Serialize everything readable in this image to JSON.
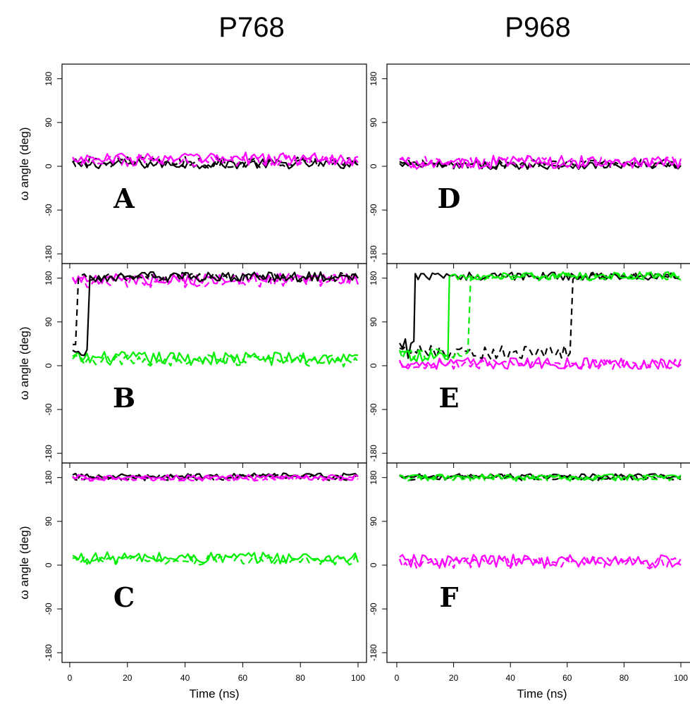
{
  "colors": {
    "black": "#000000",
    "magenta": "#ff00ff",
    "green": "#00ee00"
  },
  "columns": [
    {
      "title": "P768"
    },
    {
      "title": "P968"
    }
  ],
  "chart_data": {
    "type": "line",
    "figure_columns": [
      "P768",
      "P968"
    ],
    "xlabel": "Time (ns)",
    "ylabel": "ω angle (deg)",
    "xlim": [
      0,
      100
    ],
    "ylim": [
      -200,
      210
    ],
    "x_ticks": [
      "0",
      "20",
      "40",
      "60",
      "80",
      "100"
    ],
    "y_ticks": [
      "-180",
      "-90",
      "0",
      "90",
      "180"
    ],
    "line_styles": [
      "solid",
      "dashed"
    ],
    "panels": [
      {
        "label": "A",
        "column": "P768",
        "series": [
          {
            "color": "black",
            "style": "solid",
            "segments": [
              {
                "from": 1,
                "to": 100,
                "level": 5,
                "noise": 10
              }
            ]
          },
          {
            "color": "black",
            "style": "dashed",
            "segments": [
              {
                "from": 1,
                "to": 100,
                "level": 8,
                "noise": 12
              }
            ]
          },
          {
            "color": "magenta",
            "style": "solid",
            "segments": [
              {
                "from": 1,
                "to": 100,
                "level": 15,
                "noise": 14
              }
            ]
          },
          {
            "color": "magenta",
            "style": "dashed",
            "segments": [
              {
                "from": 1,
                "to": 100,
                "level": 12,
                "noise": 12
              }
            ]
          }
        ]
      },
      {
        "label": "B",
        "column": "P768",
        "series": [
          {
            "color": "green",
            "style": "solid",
            "segments": [
              {
                "from": 1,
                "to": 100,
                "level": 15,
                "noise": 14
              }
            ]
          },
          {
            "color": "green",
            "style": "dashed",
            "segments": [
              {
                "from": 1,
                "to": 100,
                "level": 10,
                "noise": 12
              }
            ]
          },
          {
            "color": "magenta",
            "style": "solid",
            "segments": [
              {
                "from": 1,
                "to": 100,
                "level": 178,
                "noise": 12
              }
            ]
          },
          {
            "color": "magenta",
            "style": "dashed",
            "segments": [
              {
                "from": 1,
                "to": 100,
                "level": 175,
                "noise": 14
              }
            ]
          },
          {
            "color": "black",
            "style": "solid",
            "segments": [
              {
                "from": 1,
                "to": 6.5,
                "level": 28,
                "noise": 10
              },
              {
                "from": 7,
                "to": 100,
                "level": 183,
                "noise": 10
              }
            ]
          },
          {
            "color": "black",
            "style": "dashed",
            "segments": [
              {
                "from": 1,
                "to": 2.5,
                "level": 40,
                "noise": 10
              },
              {
                "from": 3,
                "to": 100,
                "level": 182,
                "noise": 10
              }
            ]
          }
        ]
      },
      {
        "label": "C",
        "column": "P768",
        "series": [
          {
            "color": "green",
            "style": "solid",
            "segments": [
              {
                "from": 1,
                "to": 100,
                "level": 15,
                "noise": 12
              }
            ]
          },
          {
            "color": "green",
            "style": "dashed",
            "segments": [
              {
                "from": 1,
                "to": 100,
                "level": 10,
                "noise": 10
              }
            ]
          },
          {
            "color": "black",
            "style": "solid",
            "segments": [
              {
                "from": 1,
                "to": 100,
                "level": 183,
                "noise": 6
              }
            ]
          },
          {
            "color": "black",
            "style": "dashed",
            "segments": [
              {
                "from": 1,
                "to": 100,
                "level": 180,
                "noise": 6
              }
            ]
          },
          {
            "color": "magenta",
            "style": "solid",
            "segments": [
              {
                "from": 1,
                "to": 100,
                "level": 180,
                "noise": 6
              }
            ]
          },
          {
            "color": "magenta",
            "style": "dashed",
            "segments": [
              {
                "from": 1,
                "to": 100,
                "level": 178,
                "noise": 5
              }
            ]
          }
        ]
      },
      {
        "label": "D",
        "column": "P968",
        "series": [
          {
            "color": "black",
            "style": "solid",
            "segments": [
              {
                "from": 1,
                "to": 100,
                "level": 2,
                "noise": 8
              }
            ]
          },
          {
            "color": "black",
            "style": "dashed",
            "segments": [
              {
                "from": 1,
                "to": 100,
                "level": 5,
                "noise": 10
              }
            ]
          },
          {
            "color": "magenta",
            "style": "solid",
            "segments": [
              {
                "from": 1,
                "to": 100,
                "level": 8,
                "noise": 14
              }
            ]
          },
          {
            "color": "magenta",
            "style": "dashed",
            "segments": [
              {
                "from": 1,
                "to": 100,
                "level": 8,
                "noise": 12
              }
            ]
          }
        ]
      },
      {
        "label": "E",
        "column": "P968",
        "series": [
          {
            "color": "magenta",
            "style": "solid",
            "segments": [
              {
                "from": 1,
                "to": 100,
                "level": 5,
                "noise": 12
              }
            ]
          },
          {
            "color": "magenta",
            "style": "dashed",
            "segments": [
              {
                "from": 1,
                "to": 100,
                "level": 3,
                "noise": 10
              }
            ]
          },
          {
            "color": "black",
            "style": "solid",
            "segments": [
              {
                "from": 1,
                "to": 6,
                "level": 35,
                "noise": 20
              },
              {
                "from": 6.5,
                "to": 100,
                "level": 184,
                "noise": 8
              }
            ]
          },
          {
            "color": "black",
            "style": "dashed",
            "segments": [
              {
                "from": 1,
                "to": 61.5,
                "level": 28,
                "noise": 14
              },
              {
                "from": 62,
                "to": 100,
                "level": 184,
                "noise": 8
              }
            ]
          },
          {
            "color": "green",
            "style": "solid",
            "segments": [
              {
                "from": 1,
                "to": 18,
                "level": 20,
                "noise": 12
              },
              {
                "from": 18.5,
                "to": 100,
                "level": 185,
                "noise": 8
              }
            ]
          },
          {
            "color": "green",
            "style": "dashed",
            "segments": [
              {
                "from": 1,
                "to": 25.5,
                "level": 25,
                "noise": 12
              },
              {
                "from": 26,
                "to": 100,
                "level": 183,
                "noise": 8
              }
            ]
          }
        ]
      },
      {
        "label": "F",
        "column": "P968",
        "series": [
          {
            "color": "magenta",
            "style": "solid",
            "segments": [
              {
                "from": 1,
                "to": 100,
                "level": 8,
                "noise": 14
              }
            ]
          },
          {
            "color": "magenta",
            "style": "dashed",
            "segments": [
              {
                "from": 1,
                "to": 100,
                "level": 5,
                "noise": 12
              }
            ]
          },
          {
            "color": "black",
            "style": "solid",
            "segments": [
              {
                "from": 1,
                "to": 100,
                "level": 182,
                "noise": 6
              }
            ]
          },
          {
            "color": "black",
            "style": "dashed",
            "segments": [
              {
                "from": 1,
                "to": 100,
                "level": 180,
                "noise": 6
              }
            ]
          },
          {
            "color": "green",
            "style": "solid",
            "segments": [
              {
                "from": 1,
                "to": 100,
                "level": 181,
                "noise": 6
              }
            ]
          },
          {
            "color": "green",
            "style": "dashed",
            "segments": [
              {
                "from": 1,
                "to": 100,
                "level": 179,
                "noise": 6
              }
            ]
          }
        ]
      }
    ]
  }
}
